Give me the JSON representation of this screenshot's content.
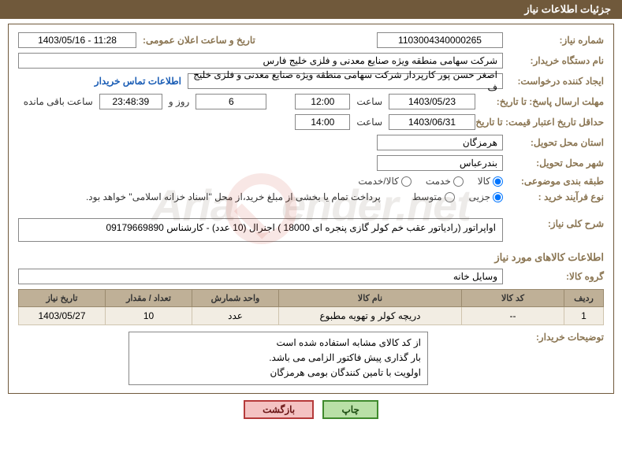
{
  "header": {
    "title": "جزئیات اطلاعات نیاز"
  },
  "watermark": "AriaTender.net",
  "form": {
    "need_no_label": "شماره نیاز:",
    "need_no": "1103004340000265",
    "announce_label": "تاریخ و ساعت اعلان عمومی:",
    "announce_value": "1403/05/16 - 11:28",
    "buyer_org_label": "نام دستگاه خریدار:",
    "buyer_org": "شرکت سهامی منطقه ویژه صنایع معدنی و فلزی خلیج فارس",
    "requester_label": "ایجاد کننده درخواست:",
    "requester": "اصغر حسن پور کارپرداز شرکت سهامی منطقه ویژه صنایع معدنی و فلزی خلیج ف",
    "contact_link": "اطلاعات تماس خریدار",
    "deadline_label": "مهلت ارسال پاسخ: تا تاریخ:",
    "deadline_date": "1403/05/23",
    "time_label": "ساعت",
    "deadline_time": "12:00",
    "days_count": "6",
    "days_label": "روز و",
    "countdown": "23:48:39",
    "remain_label": "ساعت باقی مانده",
    "validity_label": "حداقل تاریخ اعتبار قیمت: تا تاریخ:",
    "validity_date": "1403/06/31",
    "validity_time": "14:00",
    "province_label": "استان محل تحویل:",
    "province": "هرمزگان",
    "city_label": "شهر محل تحویل:",
    "city": "بندرعباس",
    "category_label": "طبقه بندی موضوعی:",
    "cat_goods": "کالا",
    "cat_service": "خدمت",
    "cat_both": "کالا/خدمت",
    "purchase_type_label": "نوع فرآیند خرید :",
    "pt_partial": "جزیی",
    "pt_medium": "متوسط",
    "purchase_note": "پرداخت تمام یا بخشی از مبلغ خرید،از محل \"اسناد خزانه اسلامی\" خواهد بود.",
    "desc_label": "شرح کلی نیاز:",
    "desc": "اواپراتور (رادیاتور عقب خم کولر گازی  پنجره ای 18000 ) اجنرال (10 عدد)  - کارشناس 09179669890",
    "items_title": "اطلاعات كالاهای مورد نیاز",
    "group_label": "گروه کالا:",
    "group": "وسایل خانه",
    "table": {
      "headers": [
        "ردیف",
        "کد کالا",
        "نام کالا",
        "واحد شمارش",
        "تعداد / مقدار",
        "تاریخ نیاز"
      ],
      "col_widths": [
        "50px",
        "130px",
        "auto",
        "110px",
        "110px",
        "110px"
      ],
      "rows": [
        [
          "1",
          "--",
          "دریچه کولر و تهویه مطبوع",
          "عدد",
          "10",
          "1403/05/27"
        ]
      ]
    },
    "buyer_notes_label": "توضیحات خریدار:",
    "buyer_notes": "از کد کالای مشابه استفاده شده است\nبار گذاری پیش فاکتور الزامی می باشد.\nاولویت با تامین کنندگان بومی هرمزگان"
  },
  "buttons": {
    "print": "چاپ",
    "back": "بازگشت"
  },
  "colors": {
    "header_bg": "#70593b",
    "label": "#8a7552",
    "link": "#1a5db5",
    "th_bg": "#bfb097",
    "td_bg": "#f2ede3"
  }
}
